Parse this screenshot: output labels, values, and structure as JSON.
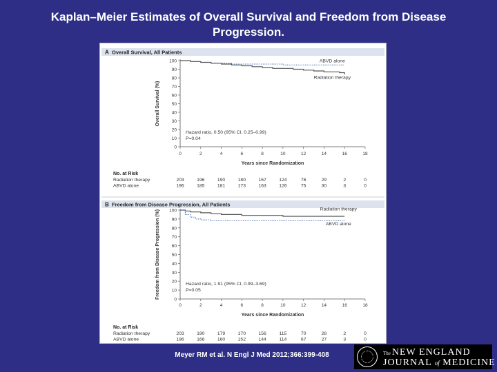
{
  "slide_title": "Kaplan–Meier Estimates of Overall Survival and Freedom from Disease Progression.",
  "citation": "Meyer RM et al. N Engl J Med 2012;366:399-408",
  "logo": {
    "the": "The",
    "line1": "NEW ENGLAND",
    "line2a": "JOURNAL",
    "line2b": "of",
    "line2c": "MEDICINE"
  },
  "chart_data": [
    {
      "type": "line",
      "panel": "A",
      "title": "Overall Survival, All Patients",
      "xlabel": "Years since Randomization",
      "ylabel": "Overall Survival (%)",
      "xlim": [
        0,
        18
      ],
      "ylim": [
        0,
        100
      ],
      "xticks": [
        0,
        2,
        4,
        6,
        8,
        10,
        12,
        14,
        16,
        18
      ],
      "yticks": [
        0,
        10,
        20,
        30,
        40,
        50,
        60,
        70,
        80,
        90,
        100
      ],
      "series": [
        {
          "name": "ABVD alone",
          "style": "dotted",
          "color": "#4a6fb0",
          "x": [
            0,
            1,
            2,
            3,
            4,
            5,
            6,
            7,
            8,
            9,
            10,
            11,
            12,
            13,
            14,
            15,
            16
          ],
          "y": [
            100,
            99,
            98,
            97,
            97,
            96,
            96,
            96,
            96,
            96,
            95,
            95,
            95,
            95,
            95,
            95,
            95
          ]
        },
        {
          "name": "Radiation therapy",
          "style": "solid",
          "color": "#555555",
          "x": [
            0,
            1,
            2,
            3,
            4,
            5,
            6,
            7,
            8,
            9,
            10,
            11,
            12,
            13,
            14,
            15,
            15.5,
            16
          ],
          "y": [
            100,
            99,
            98,
            97,
            96,
            95,
            94,
            93,
            92,
            91,
            91,
            90,
            89,
            88,
            87,
            87,
            86,
            84
          ]
        }
      ],
      "annotation": [
        "Hazard ratio, 0.50 (95% CI, 0.25–0.99)",
        "P=0.04"
      ],
      "at_risk": {
        "header": "No. at Risk",
        "rows": [
          {
            "label": "Radiation therapy",
            "values": [
              "203",
              "196",
              "190",
              "180",
              "167",
              "124",
              "76",
              "29",
              "2",
              "0"
            ]
          },
          {
            "label": "ABVD alone",
            "values": [
              "196",
              "185",
              "181",
              "173",
              "163",
              "126",
              "75",
              "30",
              "3",
              "0"
            ]
          }
        ]
      }
    },
    {
      "type": "line",
      "panel": "B",
      "title": "Freedom from Disease Progression, All Patients",
      "xlabel": "Years since Randomization",
      "ylabel": "Freedom from Disease Progression (%)",
      "xlim": [
        0,
        18
      ],
      "ylim": [
        0,
        100
      ],
      "xticks": [
        0,
        2,
        4,
        6,
        8,
        10,
        12,
        14,
        16,
        18
      ],
      "yticks": [
        0,
        10,
        20,
        30,
        40,
        50,
        60,
        70,
        80,
        90,
        100
      ],
      "series": [
        {
          "name": "Radiation therapy",
          "style": "solid",
          "color": "#555555",
          "x": [
            0,
            0.5,
            1,
            2,
            3,
            4,
            5,
            6,
            8,
            10,
            12,
            14,
            16
          ],
          "y": [
            100,
            99,
            98,
            97,
            96,
            95,
            95,
            94,
            94,
            93,
            93,
            93,
            93
          ]
        },
        {
          "name": "ABVD alone",
          "style": "dotted",
          "color": "#4a6fb0",
          "x": [
            0,
            0.5,
            1,
            1.5,
            2,
            3,
            4,
            6,
            8,
            10,
            12,
            14,
            16
          ],
          "y": [
            100,
            95,
            92,
            90,
            89,
            88,
            88,
            88,
            88,
            88,
            88,
            88,
            88
          ]
        }
      ],
      "annotation": [
        "Hazard ratio, 1.91 (95% CI, 0.99–3.69)",
        "P=0.05"
      ],
      "at_risk": {
        "header": "No. at Risk",
        "rows": [
          {
            "label": "Radiation therapy",
            "values": [
              "203",
              "190",
              "179",
              "170",
              "156",
              "115",
              "70",
              "28",
              "2",
              "0"
            ]
          },
          {
            "label": "ABVD alone",
            "values": [
              "196",
              "166",
              "160",
              "152",
              "144",
              "114",
              "67",
              "27",
              "3",
              "0"
            ]
          }
        ]
      }
    }
  ]
}
